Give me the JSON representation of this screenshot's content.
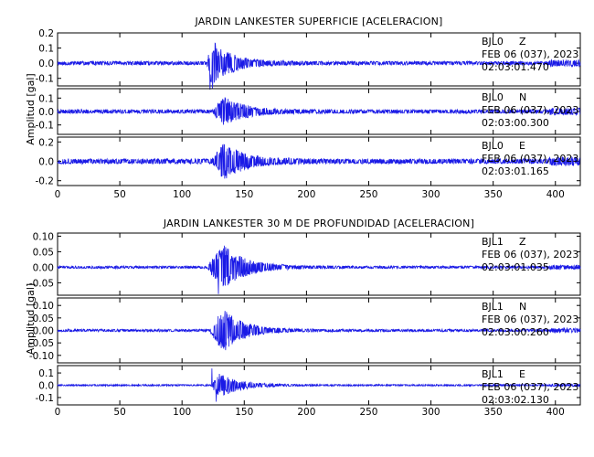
{
  "chart_data": [
    {
      "type": "line",
      "title": "JARDIN LANKESTER SUPERFICIE [ACELERACION]",
      "ylabel": "Amplitud [gal]",
      "xlim": [
        0,
        420
      ],
      "x_ticks": [
        "0",
        "50",
        "100",
        "150",
        "200",
        "250",
        "300",
        "350",
        "400"
      ],
      "traces": [
        {
          "station": "BJL0",
          "component": "Z",
          "date": "FEB 06 (037), 2023",
          "time": "02:03:01.470",
          "ylim": [
            -0.15,
            0.2
          ],
          "y_ticks": [
            0.2,
            0.1,
            0.0,
            -0.1
          ],
          "y_tick_labels": [
            "0.2",
            "0.1",
            "0.0",
            "-0.1"
          ],
          "noise": 0.012,
          "peak": 0.19,
          "onset": 120,
          "peak_time": 124,
          "decay": 16,
          "envelope_scale": 0.75,
          "seed": 11
        },
        {
          "station": "BJL0",
          "component": "N",
          "date": "FEB 06 (037), 2023",
          "time": "02:03:00.300",
          "ylim": [
            -0.17,
            0.17
          ],
          "y_ticks": [
            0.1,
            0.0,
            -0.1
          ],
          "y_tick_labels": [
            "0.1",
            "0.0",
            "-0.1"
          ],
          "noise": 0.014,
          "peak": 0.14,
          "onset": 125,
          "peak_time": 133,
          "decay": 17,
          "envelope_scale": 0.75,
          "seed": 23
        },
        {
          "station": "BJL0",
          "component": "E",
          "date": "FEB 06 (037), 2023",
          "time": "02:03:01.165",
          "ylim": [
            -0.25,
            0.25
          ],
          "y_ticks": [
            0.2,
            0.0,
            -0.2
          ],
          "y_tick_labels": [
            "0.2",
            "0.0",
            "-0.2"
          ],
          "noise": 0.025,
          "peak": 0.23,
          "onset": 123,
          "peak_time": 134,
          "decay": 17,
          "envelope_scale": 0.75,
          "seed": 37
        }
      ]
    },
    {
      "type": "line",
      "title": "JARDIN LANKESTER 30 M DE PROFUNDIDAD [ACELERACION]",
      "ylabel": "Amplitud [gal]",
      "xlim": [
        0,
        420
      ],
      "x_ticks": [
        "0",
        "50",
        "100",
        "150",
        "200",
        "250",
        "300",
        "350",
        "400"
      ],
      "traces": [
        {
          "station": "BJL1",
          "component": "Z",
          "date": "FEB 06 (037), 2023",
          "time": "02:03:01.035",
          "ylim": [
            -0.09,
            0.11
          ],
          "y_ticks": [
            0.1,
            0.05,
            0.0,
            -0.05
          ],
          "y_tick_labels": [
            "0.10",
            "0.05",
            "0.00",
            "-0.05"
          ],
          "noise": 0.004,
          "peak": 0.1,
          "onset": 120,
          "peak_time": 133,
          "decay": 18,
          "envelope_scale": 0.7,
          "seed": 41
        },
        {
          "station": "BJL1",
          "component": "N",
          "date": "FEB 06 (037), 2023",
          "time": "02:03:00.260",
          "ylim": [
            -0.13,
            0.13
          ],
          "y_ticks": [
            0.1,
            0.05,
            0.0,
            -0.05,
            -0.1
          ],
          "y_tick_labels": [
            "0.10",
            "0.05",
            "0.00",
            "-0.05",
            "-0.10"
          ],
          "noise": 0.005,
          "peak": 0.12,
          "onset": 122,
          "peak_time": 133,
          "decay": 16,
          "envelope_scale": 0.7,
          "seed": 53
        },
        {
          "station": "BJL1",
          "component": "E",
          "date": "FEB 06 (037), 2023",
          "time": "02:03:02.130",
          "ylim": [
            -0.16,
            0.16
          ],
          "y_ticks": [
            0.1,
            0.0,
            -0.1
          ],
          "y_tick_labels": [
            "0.1",
            "0.0",
            "-0.1"
          ],
          "noise": 0.006,
          "peak": 0.14,
          "onset": 123,
          "peak_time": 130,
          "decay": 16,
          "envelope_scale": 0.7,
          "seed": 67
        }
      ]
    }
  ]
}
